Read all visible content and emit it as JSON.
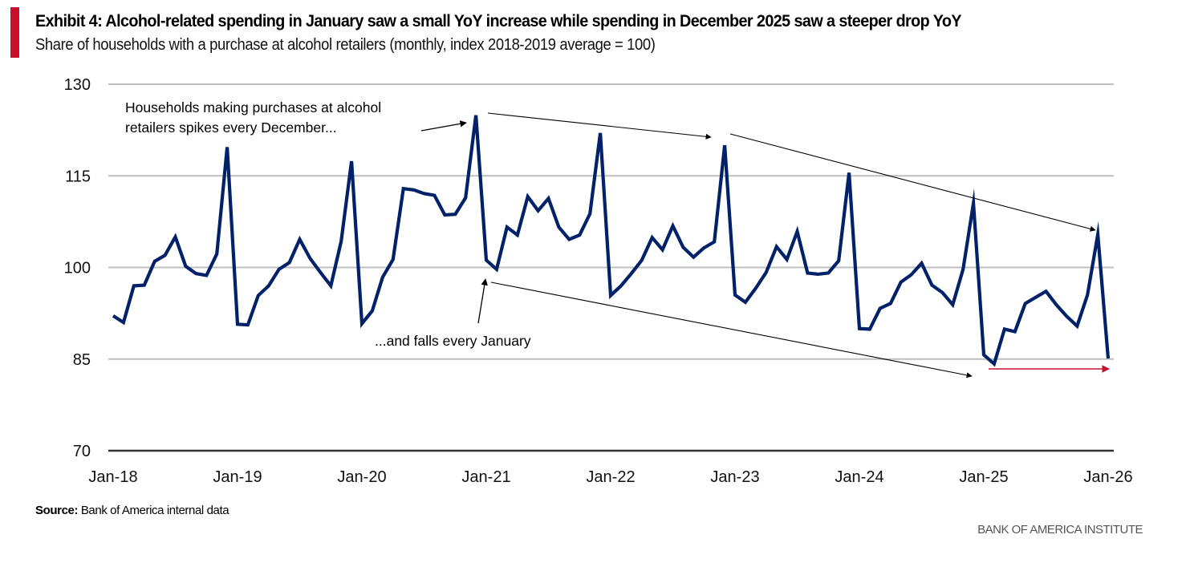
{
  "header": {
    "title": "Exhibit 4: Alcohol-related spending in January saw a small YoY increase while spending in December 2025 saw a steeper drop YoY",
    "subtitle": "Share of households with a purchase at alcohol retailers (monthly, index 2018-2019 average = 100)"
  },
  "footer": {
    "source_label": "Source:",
    "source_text": " Bank of America internal data",
    "brand": "BANK OF AMERICA INSTITUTE"
  },
  "colors": {
    "accent": "#c8102e",
    "series": "#012169",
    "gridline": "#bfbfbf",
    "axis": "#333333",
    "red_arrow": "#c8102e"
  },
  "chart_data": {
    "type": "line",
    "title": "Exhibit 4: Alcohol-related spending in January saw a small YoY increase while spending in December 2025 saw a steeper drop YoY",
    "subtitle": "Share of households with a purchase at alcohol retailers (monthly, index 2018-2019 average = 100)",
    "xlabel": "",
    "ylabel": "",
    "ylim": [
      70,
      130
    ],
    "yticks": [
      70,
      85,
      100,
      115,
      130
    ],
    "grid": true,
    "legend": "none",
    "x_start": "Jan-18",
    "x_end": "Jan-26",
    "xtick_labels": [
      "Jan-18",
      "Jan-19",
      "Jan-20",
      "Jan-21",
      "Jan-22",
      "Jan-23",
      "Jan-24",
      "Jan-25",
      "Jan-26"
    ],
    "series": [
      {
        "name": "Share of households with a purchase at alcohol retailers",
        "values": [
          92.1,
          91.0,
          97.0,
          97.1,
          101.0,
          102.0,
          105.0,
          100.2,
          99.0,
          98.7,
          102.2,
          119.7,
          90.7,
          90.6,
          95.4,
          97.0,
          99.7,
          100.8,
          104.6,
          101.5,
          99.2,
          97.0,
          104.3,
          117.4,
          90.8,
          92.9,
          98.4,
          101.3,
          112.9,
          112.7,
          112.1,
          111.8,
          108.6,
          108.7,
          111.4,
          124.9,
          101.2,
          99.7,
          106.6,
          105.3,
          111.6,
          109.3,
          111.3,
          106.6,
          104.6,
          105.3,
          108.8,
          122.0,
          95.4,
          97.0,
          99.0,
          101.2,
          104.9,
          102.9,
          106.8,
          103.3,
          101.7,
          103.2,
          104.2,
          120.0,
          95.5,
          94.3,
          96.6,
          99.2,
          103.4,
          101.3,
          105.9,
          99.1,
          98.9,
          99.1,
          101.1,
          115.5,
          90.0,
          89.9,
          93.3,
          94.1,
          97.6,
          98.8,
          100.7,
          97.1,
          95.9,
          93.9,
          99.7,
          110.5,
          85.7,
          84.2,
          89.9,
          89.5,
          94.1,
          95.1,
          96.1,
          93.9,
          92.0,
          90.4,
          95.5,
          105.4,
          85.1
        ]
      }
    ],
    "annotations": [
      {
        "text_lines": [
          "Households making purchases at alcohol",
          "retailers spikes every December..."
        ]
      },
      {
        "text_lines": [
          "...and falls every January"
        ]
      }
    ],
    "arrows": [
      {
        "from_month": 35.0,
        "from_value": 124.9,
        "to_month": 35.0,
        "to_value": 124.9,
        "color": "black",
        "label": "points to Dec-20 peak"
      },
      {
        "label": "December peaks trend down",
        "color": "black",
        "points_month_value": [
          [
            36,
            125.5
          ],
          [
            57.5,
            121
          ],
          [
            59,
            121
          ],
          [
            95,
            105.8
          ]
        ]
      },
      {
        "label": "January troughs trend down",
        "color": "black",
        "points_month_value": [
          [
            36,
            98.5
          ],
          [
            83,
            83
          ]
        ]
      },
      {
        "label": "Jan-25 to Jan-26 comparison",
        "color": "red",
        "from_month": 84.5,
        "to_month": 96,
        "value": 84.5
      }
    ]
  }
}
